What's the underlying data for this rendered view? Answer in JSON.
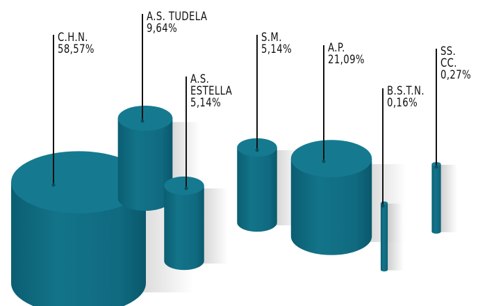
{
  "chart_data": {
    "type": "cylinder",
    "categories": [
      "C.H.N.",
      "A.S. TUDELA",
      "A.S.\nESTELLA",
      "S.M.",
      "A.P.",
      "B.S.T.N.",
      "SS. CC."
    ],
    "values": [
      58.57,
      9.64,
      5.14,
      5.14,
      21.09,
      0.16,
      0.27
    ],
    "value_labels": [
      "58,57%",
      "9,64%",
      "5,14%",
      "5,14%",
      "21,09%",
      "0,16%",
      "0,27%"
    ],
    "color": "#157a90"
  }
}
